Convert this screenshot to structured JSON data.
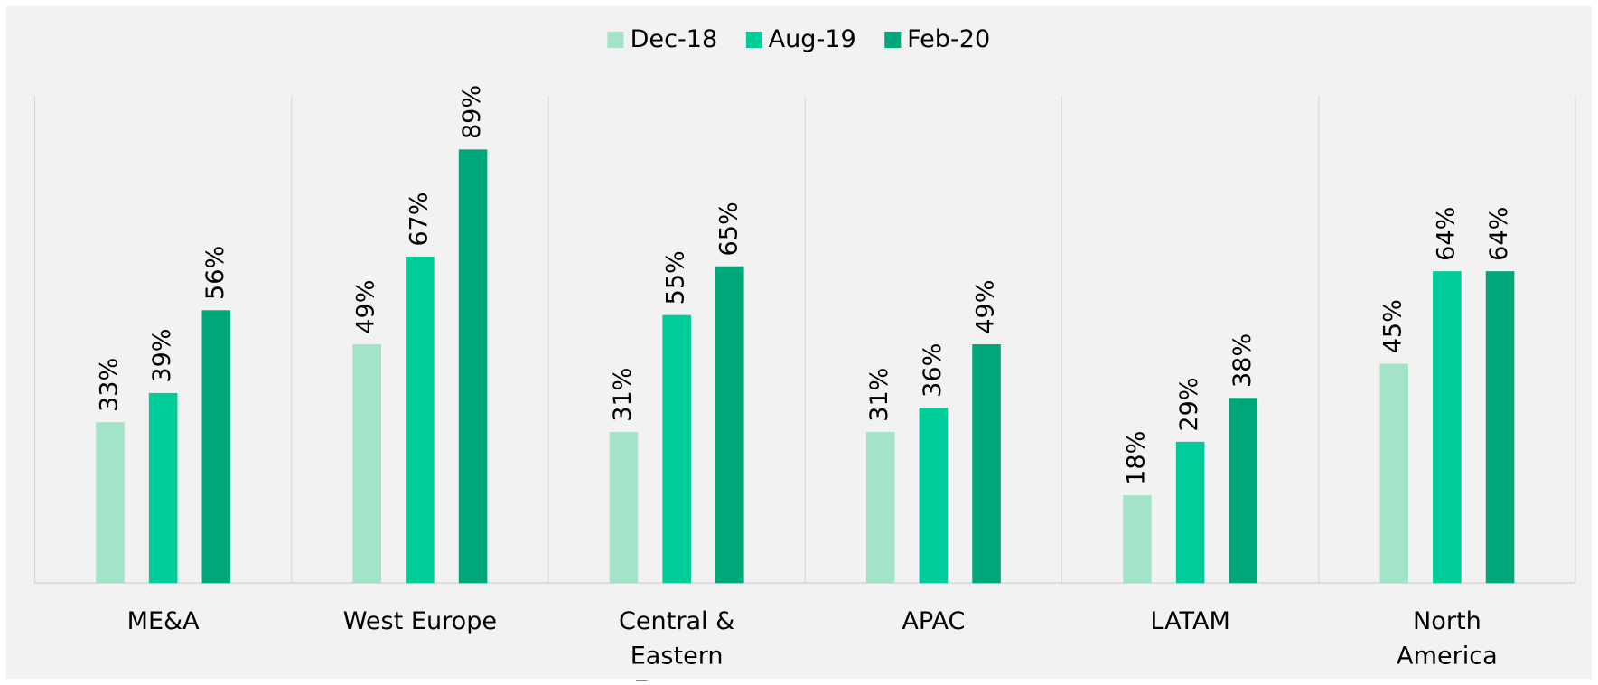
{
  "chart_data": {
    "type": "bar",
    "categories": [
      "ME&A",
      "West Europe",
      "Central & Eastern Europe",
      "APAC",
      "LATAM",
      "North America"
    ],
    "series": [
      {
        "name": "Dec-18",
        "color": "#a3e4c9",
        "values": [
          33,
          49,
          31,
          31,
          18,
          45
        ],
        "value_labels": [
          "33%",
          "49%",
          "31%",
          "31%",
          "18%",
          "45%"
        ]
      },
      {
        "name": "Aug-19",
        "color": "#00cc99",
        "values": [
          39,
          67,
          55,
          36,
          29,
          64
        ],
        "value_labels": [
          "39%",
          "67%",
          "55%",
          "36%",
          "29%",
          "64%"
        ]
      },
      {
        "name": "Feb-20",
        "color": "#00a77a",
        "values": [
          56,
          89,
          65,
          49,
          38,
          64
        ],
        "value_labels": [
          "56%",
          "89%",
          "65%",
          "49%",
          "38%",
          "64%"
        ]
      }
    ],
    "ylim": [
      0,
      100
    ],
    "legend": "top"
  }
}
